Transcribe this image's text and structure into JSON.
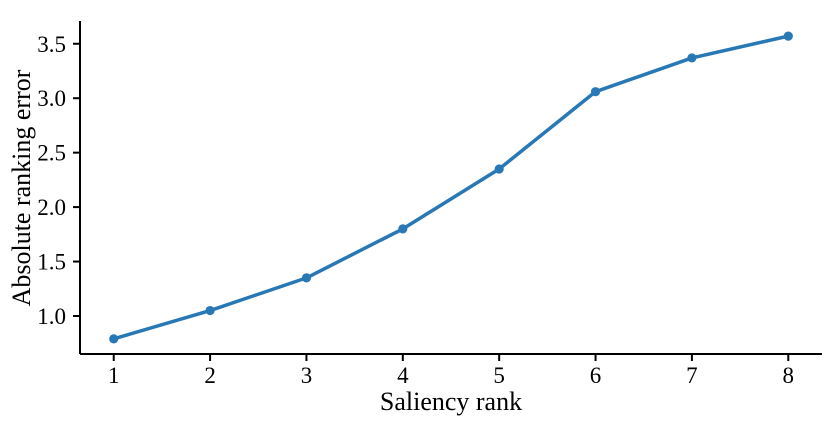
{
  "chart": {
    "background_color": "#ffffff",
    "axis_color": "#000000",
    "line_color": "#2878b5"
  },
  "chart_data": {
    "type": "line",
    "title": "",
    "xlabel": "Saliency rank",
    "ylabel": "Absolute ranking error",
    "x": [
      1,
      2,
      3,
      4,
      5,
      6,
      7,
      8
    ],
    "values": [
      0.79,
      1.05,
      1.35,
      1.8,
      2.35,
      3.06,
      3.37,
      3.57
    ],
    "xlim": [
      0.65,
      8.35
    ],
    "ylim": [
      0.651,
      3.709
    ],
    "xticks": [
      1,
      2,
      3,
      4,
      5,
      6,
      7,
      8
    ],
    "xtick_labels": [
      "1",
      "2",
      "3",
      "4",
      "5",
      "6",
      "7",
      "8"
    ],
    "yticks": [
      1.0,
      1.5,
      2.0,
      2.5,
      3.0,
      3.5
    ],
    "ytick_labels": [
      "1.0",
      "1.5",
      "2.0",
      "2.5",
      "3.0",
      "3.5"
    ],
    "grid": false,
    "legend": "none",
    "marker": "circle",
    "line_color": "#2878b5",
    "marker_color": "#2878b5"
  }
}
